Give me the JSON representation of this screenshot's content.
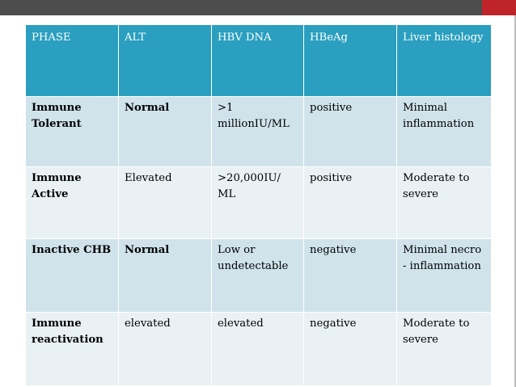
{
  "table": {
    "headers": [
      "PHASE",
      "ALT",
      "HBV DNA",
      "HBeAg",
      "Liver histology"
    ],
    "rows": [
      {
        "phase": "Immune Tolerant",
        "alt": "Normal",
        "hbv_dna": ">1 millionIU/ML",
        "hbeag": "positive",
        "histology": "Minimal inflammation"
      },
      {
        "phase": "Immune Active",
        "alt": "Elevated",
        "hbv_dna": ">20,000IU/ ML",
        "hbeag": "positive",
        "histology": "Moderate to severe"
      },
      {
        "phase": "Inactive CHB",
        "alt": "Normal",
        "hbv_dna": "Low or undetectable",
        "hbeag": "negative",
        "histology": "Minimal necro - inflammation"
      },
      {
        "phase": "Immune reactivation",
        "alt": "elevated",
        "hbv_dna": "elevated",
        "hbeag": "negative",
        "histology": "Moderate to severe"
      }
    ]
  },
  "colors": {
    "header_bg": "#2a9fbf",
    "row_odd_bg": "#d0e3eb",
    "row_even_bg": "#e9f1f5",
    "top_bar": "#4d4d4d",
    "accent": "#c0242b"
  }
}
